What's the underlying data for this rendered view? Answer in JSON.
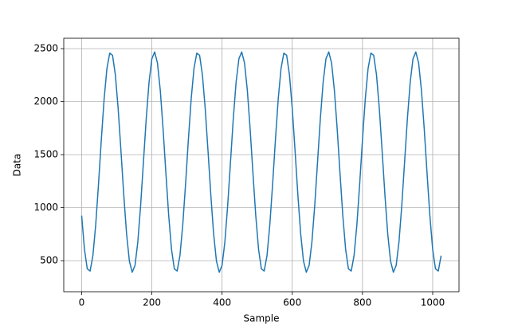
{
  "chart_data": {
    "type": "line",
    "xlabel": "Sample",
    "ylabel": "Data",
    "color": "#1f77b4",
    "grid": true,
    "xlim": [
      -51,
      1075
    ],
    "ylim": [
      207,
      2598
    ],
    "xticks": [
      0,
      200,
      400,
      600,
      800,
      1000
    ],
    "yticks": [
      500,
      1000,
      1500,
      2000,
      2500
    ],
    "x": [
      0,
      8,
      16,
      24,
      32,
      40,
      48,
      56,
      64,
      72,
      80,
      88,
      96,
      104,
      112,
      120,
      128,
      136,
      144,
      152,
      160,
      168,
      176,
      184,
      192,
      200,
      208,
      216,
      224,
      232,
      240,
      248,
      256,
      264,
      272,
      280,
      288,
      296,
      304,
      312,
      320,
      328,
      336,
      344,
      352,
      360,
      368,
      376,
      384,
      392,
      400,
      408,
      416,
      424,
      432,
      440,
      448,
      456,
      464,
      472,
      480,
      488,
      496,
      504,
      512,
      520,
      528,
      536,
      544,
      552,
      560,
      568,
      576,
      584,
      592,
      600,
      608,
      616,
      624,
      632,
      640,
      648,
      656,
      664,
      672,
      680,
      688,
      696,
      704,
      712,
      720,
      728,
      736,
      744,
      752,
      760,
      768,
      776,
      784,
      792,
      800,
      808,
      816,
      824,
      832,
      840,
      848,
      856,
      864,
      872,
      880,
      888,
      896,
      904,
      912,
      920,
      928,
      936,
      944,
      952,
      960,
      968,
      976,
      984,
      992,
      1000,
      1008,
      1016,
      1024
    ],
    "values": [
      925,
      607,
      423,
      402,
      547,
      836,
      1221,
      1639,
      2024,
      2313,
      2458,
      2437,
      2253,
      1935,
      1535,
      1119,
      752,
      496,
      391,
      455,
      676,
      1020,
      1430,
      1840,
      2184,
      2405,
      2469,
      2364,
      2107,
      1741,
      1325,
      925,
      607,
      423,
      402,
      547,
      836,
      1221,
      1639,
      2024,
      2313,
      2458,
      2437,
      2253,
      1935,
      1535,
      1119,
      752,
      496,
      391,
      455,
      676,
      1020,
      1430,
      1840,
      2184,
      2405,
      2469,
      2364,
      2107,
      1741,
      1325,
      925,
      607,
      423,
      402,
      547,
      836,
      1221,
      1639,
      2024,
      2313,
      2458,
      2437,
      2253,
      1935,
      1535,
      1119,
      752,
      496,
      391,
      455,
      676,
      1020,
      1430,
      1840,
      2184,
      2405,
      2469,
      2364,
      2107,
      1741,
      1325,
      925,
      607,
      423,
      402,
      547,
      836,
      1221,
      1639,
      2024,
      2313,
      2458,
      2437,
      2253,
      1935,
      1535,
      1119,
      752,
      496,
      391,
      455,
      676,
      1020,
      1430,
      1840,
      2184,
      2405,
      2469,
      2364,
      2107,
      1741,
      1325,
      925,
      607,
      423,
      402,
      547
    ]
  }
}
